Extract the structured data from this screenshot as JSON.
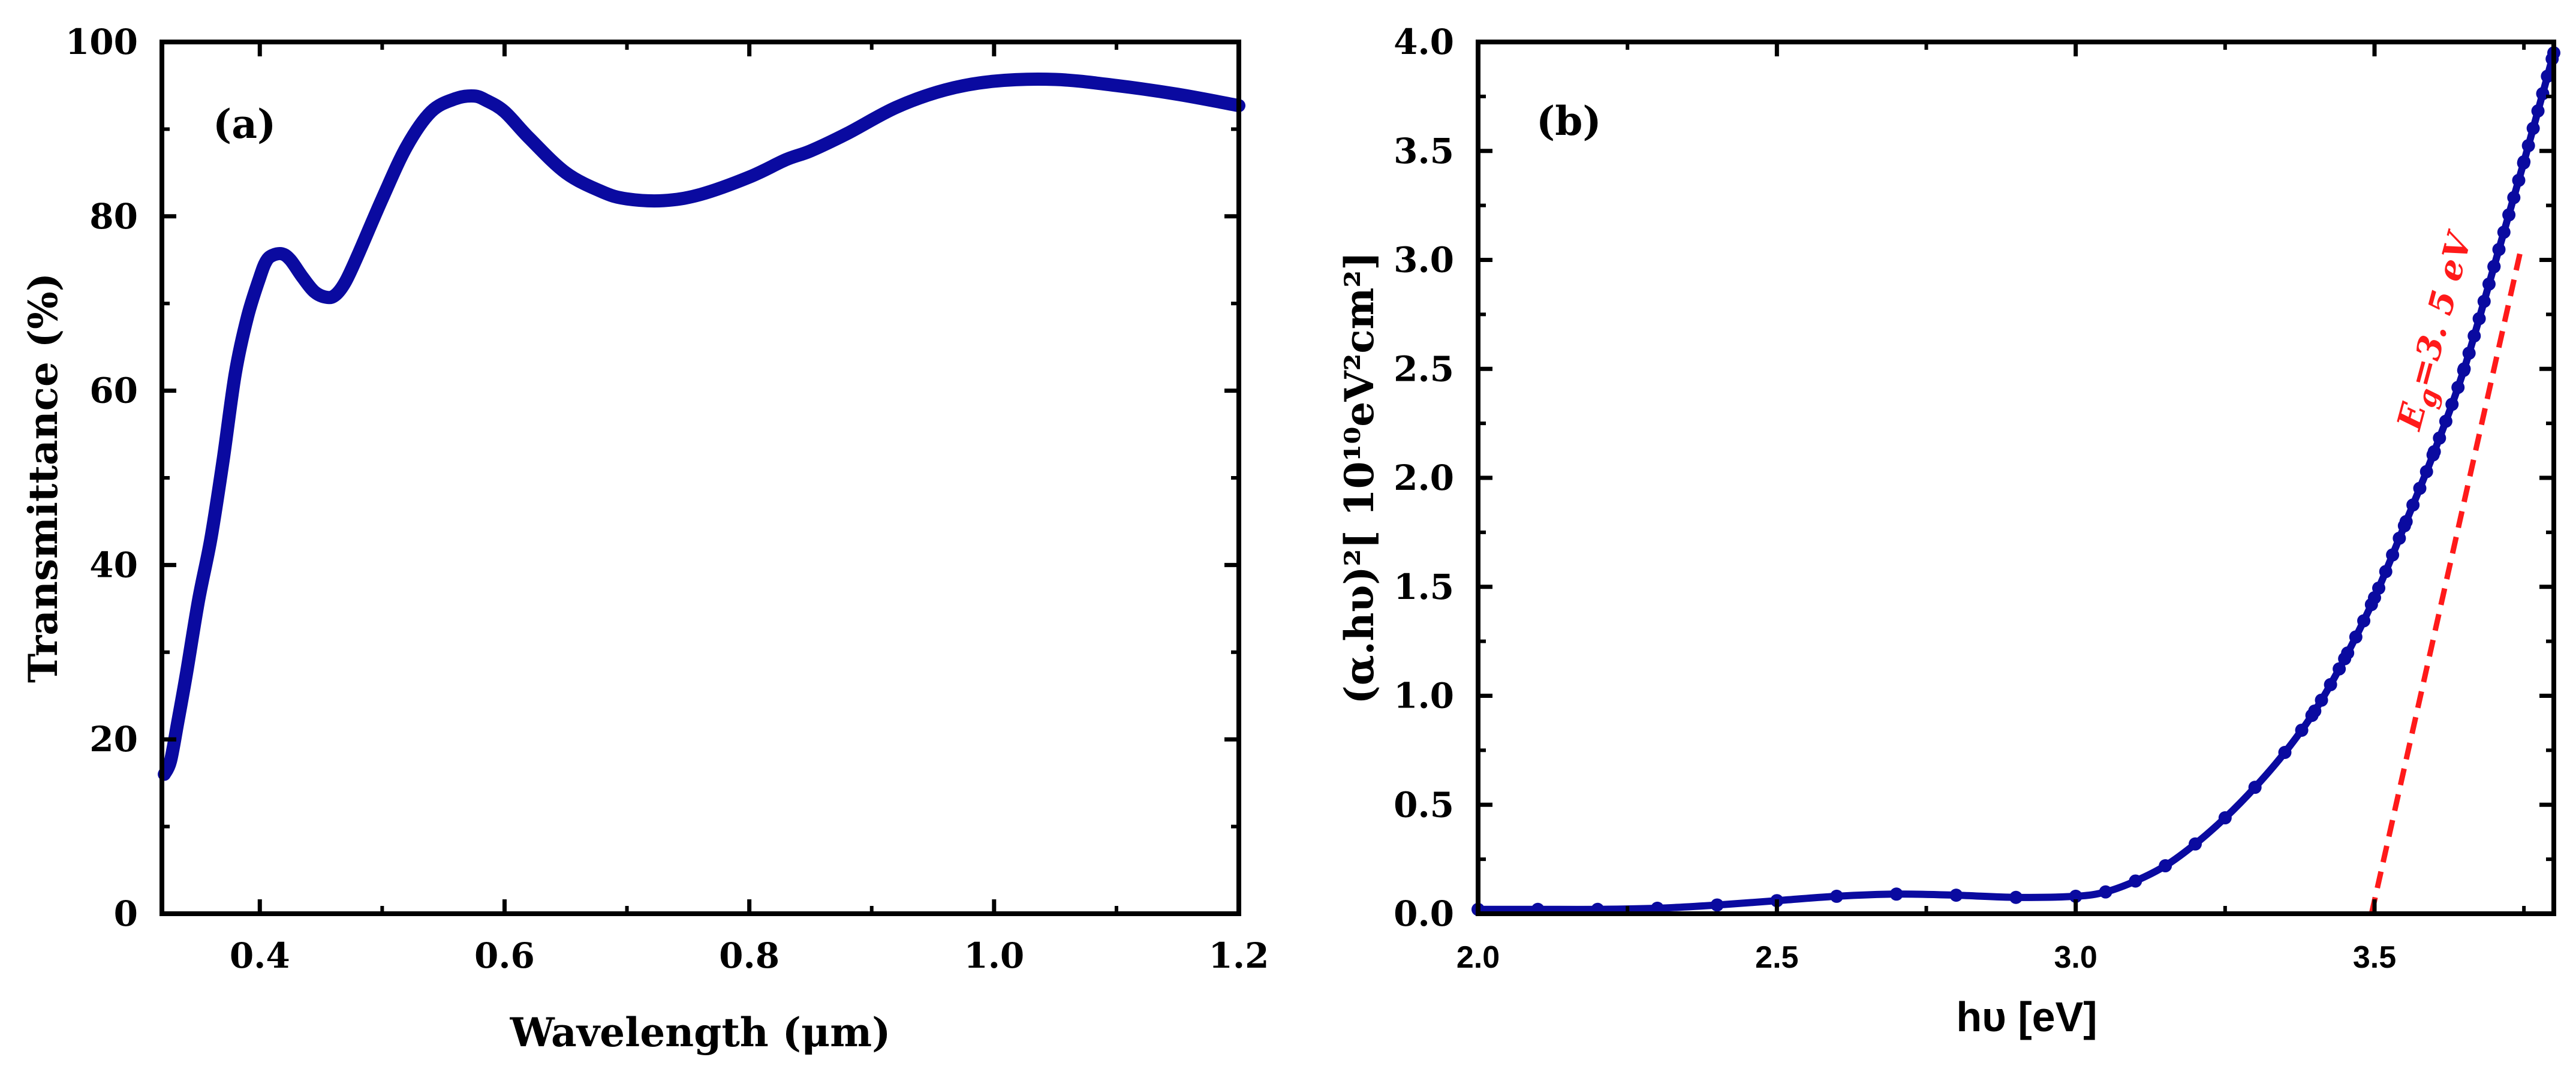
{
  "chart_data": [
    {
      "type": "line",
      "panel_label": "(a)",
      "xlabel": "Wavelength (μm)",
      "ylabel": "Transmittance (%)",
      "xlim": [
        0.32,
        1.2
      ],
      "ylim": [
        0,
        100
      ],
      "x_ticks": [
        0.4,
        0.6,
        0.8,
        1.0,
        1.2
      ],
      "x_tick_labels": [
        "0.4",
        "0.6",
        "0.8",
        "1.0",
        "1.2"
      ],
      "y_ticks": [
        0,
        20,
        40,
        60,
        80,
        100
      ],
      "y_tick_labels": [
        "0",
        "20",
        "40",
        "60",
        "80",
        "100"
      ],
      "color": "#0a0aa0",
      "series": [
        {
          "name": "Transmittance",
          "x": [
            0.322,
            0.327,
            0.333,
            0.34,
            0.35,
            0.36,
            0.37,
            0.38,
            0.39,
            0.4,
            0.405,
            0.41,
            0.418,
            0.425,
            0.435,
            0.445,
            0.455,
            0.462,
            0.47,
            0.48,
            0.5,
            0.52,
            0.54,
            0.56,
            0.575,
            0.585,
            0.6,
            0.62,
            0.65,
            0.68,
            0.7,
            0.73,
            0.76,
            0.8,
            0.83,
            0.85,
            0.88,
            0.92,
            0.96,
            1.0,
            1.05,
            1.1,
            1.15,
            1.2
          ],
          "y": [
            16.0,
            17.5,
            22.0,
            27.5,
            36.0,
            43.0,
            52.0,
            62.0,
            68.5,
            73.0,
            74.8,
            75.5,
            75.7,
            75.0,
            73.0,
            71.3,
            70.7,
            71.0,
            72.5,
            75.5,
            82.0,
            88.0,
            92.0,
            93.5,
            93.8,
            93.3,
            92.0,
            89.0,
            85.0,
            82.8,
            82.0,
            81.8,
            82.5,
            84.5,
            86.5,
            87.5,
            89.5,
            92.5,
            94.5,
            95.5,
            95.7,
            95.0,
            94.0,
            92.7
          ]
        }
      ]
    },
    {
      "type": "scatter",
      "panel_label": "(b)",
      "xlabel": "hυ [eV]",
      "ylabel": "(α.hυ)²[ 10¹⁰eV²cm²]",
      "xlim": [
        2.0,
        3.8
      ],
      "ylim": [
        0,
        4.0
      ],
      "x_ticks": [
        2.0,
        2.5,
        3.0,
        3.5
      ],
      "x_tick_labels": [
        "2.0",
        "2.5",
        "3.0",
        "3.5"
      ],
      "y_ticks": [
        0,
        0.5,
        1.0,
        1.5,
        2.0,
        2.5,
        3.0,
        3.5,
        4.0
      ],
      "y_tick_labels": [
        "0.0",
        "0.5",
        "1.0",
        "1.5",
        "2.0",
        "2.5",
        "3.0",
        "3.5",
        "4.0"
      ],
      "color": "#0a0aa0",
      "series": [
        {
          "name": "(α.hυ)²",
          "x": [
            2.0,
            2.1,
            2.2,
            2.3,
            2.4,
            2.5,
            2.6,
            2.7,
            2.8,
            2.9,
            3.0,
            3.05,
            3.1,
            3.15,
            3.2,
            3.25,
            3.3,
            3.35,
            3.4,
            3.45,
            3.5,
            3.55,
            3.6,
            3.65,
            3.7,
            3.75,
            3.8
          ],
          "y": [
            0.02,
            0.02,
            0.02,
            0.025,
            0.04,
            0.06,
            0.08,
            0.09,
            0.085,
            0.075,
            0.08,
            0.1,
            0.15,
            0.22,
            0.32,
            0.44,
            0.58,
            0.74,
            0.93,
            1.17,
            1.45,
            1.78,
            2.12,
            2.5,
            2.97,
            3.45,
            3.95
          ]
        },
        {
          "name": "Linear fit",
          "style": "dashed",
          "color": "#ff1a1a",
          "x": [
            3.495,
            3.745
          ],
          "y": [
            0.0,
            3.05
          ]
        }
      ],
      "annotation": {
        "prefix": "E",
        "subscript": "g",
        "suffix": "=3. 5 eV",
        "color": "#ff1a1a"
      }
    }
  ]
}
